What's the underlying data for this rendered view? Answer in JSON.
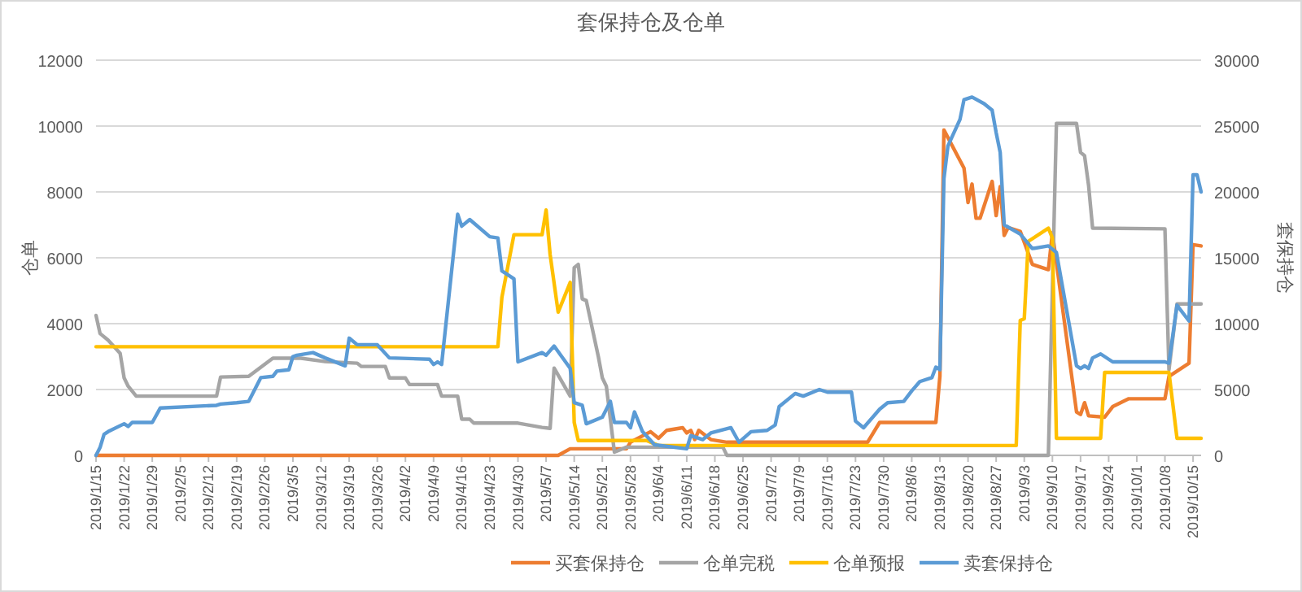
{
  "chart_data": {
    "type": "line",
    "title": "套保持仓及仓单",
    "ylabel": "仓单",
    "y2label": "套保持仓",
    "legend": "bottom",
    "grid": "y",
    "xlim": [
      "2019-01-15",
      "2019-10-17"
    ],
    "ylim": [
      0,
      12000
    ],
    "yticks": [
      0,
      2000,
      4000,
      6000,
      8000,
      10000,
      12000
    ],
    "y2lim": [
      0,
      30000
    ],
    "y2ticks": [
      0,
      5000,
      10000,
      15000,
      20000,
      25000,
      30000
    ],
    "xticks": [
      {
        "value": "2019-01-15",
        "label": "2019/1/15"
      },
      {
        "value": "2019-01-22",
        "label": "2019/1/22"
      },
      {
        "value": "2019-01-29",
        "label": "2019/1/29"
      },
      {
        "value": "2019-02-05",
        "label": "2019/2/5"
      },
      {
        "value": "2019-02-12",
        "label": "2019/2/12"
      },
      {
        "value": "2019-02-19",
        "label": "2019/2/19"
      },
      {
        "value": "2019-02-26",
        "label": "2019/2/26"
      },
      {
        "value": "2019-03-05",
        "label": "2019/3/5"
      },
      {
        "value": "2019-03-12",
        "label": "2019/3/12"
      },
      {
        "value": "2019-03-19",
        "label": "2019/3/19"
      },
      {
        "value": "2019-03-26",
        "label": "2019/3/26"
      },
      {
        "value": "2019-04-02",
        "label": "2019/4/2"
      },
      {
        "value": "2019-04-09",
        "label": "2019/4/9"
      },
      {
        "value": "2019-04-16",
        "label": "2019/4/16"
      },
      {
        "value": "2019-04-23",
        "label": "2019/4/23"
      },
      {
        "value": "2019-04-30",
        "label": "2019/4/30"
      },
      {
        "value": "2019-05-07",
        "label": "2019/5/7"
      },
      {
        "value": "2019-05-14",
        "label": "2019/5/14"
      },
      {
        "value": "2019-05-21",
        "label": "2019/5/21"
      },
      {
        "value": "2019-05-28",
        "label": "2019/5/28"
      },
      {
        "value": "2019-06-04",
        "label": "2019/6/4"
      },
      {
        "value": "2019-06-11",
        "label": "2019/6/11"
      },
      {
        "value": "2019-06-18",
        "label": "2019/6/18"
      },
      {
        "value": "2019-06-25",
        "label": "2019/6/25"
      },
      {
        "value": "2019-07-02",
        "label": "2019/7/2"
      },
      {
        "value": "2019-07-09",
        "label": "2019/7/9"
      },
      {
        "value": "2019-07-16",
        "label": "2019/7/16"
      },
      {
        "value": "2019-07-23",
        "label": "2019/7/23"
      },
      {
        "value": "2019-07-30",
        "label": "2019/7/30"
      },
      {
        "value": "2019-08-06",
        "label": "2019/8/6"
      },
      {
        "value": "2019-08-13",
        "label": "2019/8/13"
      },
      {
        "value": "2019-08-20",
        "label": "2019/8/20"
      },
      {
        "value": "2019-08-27",
        "label": "2019/8/27"
      },
      {
        "value": "2019-09-03",
        "label": "2019/9/3"
      },
      {
        "value": "2019-09-10",
        "label": "2019/9/10"
      },
      {
        "value": "2019-09-17",
        "label": "2019/9/17"
      },
      {
        "value": "2019-09-24",
        "label": "2019/9/24"
      },
      {
        "value": "2019-10-01",
        "label": "2019/10/1"
      },
      {
        "value": "2019-10-08",
        "label": "2019/10/8"
      },
      {
        "value": "2019-10-15",
        "label": "2019/10/15"
      }
    ],
    "series": [
      {
        "name": "买套保持仓",
        "color": "#ed7d31",
        "axis": "y2",
        "x": [
          "2019-01-15",
          "2019-05-10",
          "2019-05-13",
          "2019-05-27",
          "2019-05-28",
          "2019-06-02",
          "2019-06-04",
          "2019-06-06",
          "2019-06-10",
          "2019-06-11",
          "2019-06-12",
          "2019-06-13",
          "2019-06-14",
          "2019-06-17",
          "2019-06-21",
          "2019-07-26",
          "2019-07-29",
          "2019-08-12",
          "2019-08-13",
          "2019-08-14",
          "2019-08-19",
          "2019-08-20",
          "2019-08-21",
          "2019-08-22",
          "2019-08-23",
          "2019-08-26",
          "2019-08-27",
          "2019-08-28",
          "2019-08-29",
          "2019-08-30",
          "2019-09-02",
          "2019-09-05",
          "2019-09-09",
          "2019-09-10",
          "2019-09-16",
          "2019-09-17",
          "2019-09-18",
          "2019-09-19",
          "2019-09-23",
          "2019-09-25",
          "2019-09-29",
          "2019-10-08",
          "2019-10-09",
          "2019-10-14",
          "2019-10-15",
          "2019-10-17"
        ],
        "values": [
          0,
          0,
          500,
          500,
          1000,
          1800,
          1300,
          1900,
          2100,
          1700,
          1900,
          1200,
          1900,
          1200,
          1000,
          1000,
          2500,
          2500,
          6000,
          24700,
          21800,
          19200,
          20600,
          18000,
          18000,
          20800,
          18200,
          20400,
          16700,
          17300,
          17000,
          14500,
          14100,
          16900,
          3300,
          3100,
          4000,
          3000,
          2900,
          3700,
          4300,
          4300,
          6000,
          7000,
          16000,
          15900
        ]
      },
      {
        "name": "仓单完税",
        "color": "#a5a5a5",
        "x": [
          "2019-01-15",
          "2019-01-16",
          "2019-01-18",
          "2019-01-21",
          "2019-01-22",
          "2019-01-23",
          "2019-01-25",
          "2019-02-14",
          "2019-02-15",
          "2019-02-22",
          "2019-02-28",
          "2019-03-07",
          "2019-03-13",
          "2019-03-21",
          "2019-03-22",
          "2019-03-28",
          "2019-03-29",
          "2019-04-02",
          "2019-04-03",
          "2019-04-10",
          "2019-04-11",
          "2019-04-15",
          "2019-04-16",
          "2019-04-18",
          "2019-04-19",
          "2019-04-30",
          "2019-05-06",
          "2019-05-08",
          "2019-05-09",
          "2019-05-13",
          "2019-05-14",
          "2019-05-15",
          "2019-05-16",
          "2019-05-17",
          "2019-05-20",
          "2019-05-21",
          "2019-05-22",
          "2019-05-24",
          "2019-05-27",
          "2019-06-20",
          "2019-06-21",
          "2019-09-09",
          "2019-09-11",
          "2019-09-16",
          "2019-09-17",
          "2019-09-18",
          "2019-09-19",
          "2019-09-20",
          "2019-10-08",
          "2019-10-09",
          "2019-10-11",
          "2019-10-17"
        ],
        "values": [
          4250,
          3700,
          3500,
          3100,
          2350,
          2100,
          1800,
          1800,
          2380,
          2400,
          2950,
          2950,
          2850,
          2800,
          2700,
          2700,
          2350,
          2350,
          2150,
          2150,
          1800,
          1800,
          1100,
          1100,
          980,
          980,
          850,
          820,
          2650,
          1800,
          5700,
          5800,
          4750,
          4700,
          3000,
          2350,
          2100,
          100,
          250,
          250,
          0,
          0,
          10080,
          10080,
          9200,
          9100,
          8200,
          6900,
          6880,
          2600,
          4600,
          4600
        ]
      },
      {
        "name": "仓单预报",
        "color": "#ffc000",
        "x": [
          "2019-01-15",
          "2019-04-25",
          "2019-04-26",
          "2019-04-29",
          "2019-05-06",
          "2019-05-07",
          "2019-05-08",
          "2019-05-10",
          "2019-05-13",
          "2019-05-14",
          "2019-05-15",
          "2019-06-01",
          "2019-06-04",
          "2019-09-01",
          "2019-09-02",
          "2019-09-03",
          "2019-09-04",
          "2019-09-09",
          "2019-09-10",
          "2019-09-11",
          "2019-09-22",
          "2019-09-23",
          "2019-10-09",
          "2019-10-11",
          "2019-10-17"
        ],
        "values": [
          3300,
          3300,
          4800,
          6700,
          6700,
          7450,
          6100,
          4350,
          5250,
          1000,
          450,
          450,
          300,
          300,
          4100,
          4150,
          6500,
          6900,
          6600,
          520,
          520,
          2520,
          2520,
          520,
          520
        ]
      },
      {
        "name": "卖套保持仓",
        "color": "#5b9bd5",
        "axis": "y2",
        "x": [
          "2019-01-15",
          "2019-01-16",
          "2019-01-17",
          "2019-01-18",
          "2019-01-22",
          "2019-01-23",
          "2019-01-24",
          "2019-01-29",
          "2019-01-31",
          "2019-02-14",
          "2019-02-15",
          "2019-02-19",
          "2019-02-22",
          "2019-02-25",
          "2019-02-28",
          "2019-03-01",
          "2019-03-04",
          "2019-03-05",
          "2019-03-06",
          "2019-03-10",
          "2019-03-13",
          "2019-03-18",
          "2019-03-19",
          "2019-03-21",
          "2019-03-26",
          "2019-03-29",
          "2019-04-08",
          "2019-04-09",
          "2019-04-10",
          "2019-04-11",
          "2019-04-15",
          "2019-04-16",
          "2019-04-18",
          "2019-04-23",
          "2019-04-25",
          "2019-04-26",
          "2019-04-29",
          "2019-04-30",
          "2019-05-06",
          "2019-05-07",
          "2019-05-09",
          "2019-05-13",
          "2019-05-14",
          "2019-05-16",
          "2019-05-17",
          "2019-05-21",
          "2019-05-23",
          "2019-05-24",
          "2019-05-27",
          "2019-05-28",
          "2019-05-29",
          "2019-05-31",
          "2019-06-03",
          "2019-06-11",
          "2019-06-12",
          "2019-06-15",
          "2019-06-17",
          "2019-06-22",
          "2019-06-24",
          "2019-06-27",
          "2019-07-01",
          "2019-07-03",
          "2019-07-04",
          "2019-07-08",
          "2019-07-10",
          "2019-07-14",
          "2019-07-16",
          "2019-07-22",
          "2019-07-23",
          "2019-07-25",
          "2019-07-29",
          "2019-07-31",
          "2019-08-04",
          "2019-08-06",
          "2019-08-08",
          "2019-08-11",
          "2019-08-12",
          "2019-08-13",
          "2019-08-14",
          "2019-08-15",
          "2019-08-18",
          "2019-08-19",
          "2019-08-21",
          "2019-08-24",
          "2019-08-26",
          "2019-08-27",
          "2019-08-28",
          "2019-08-29",
          "2019-09-02",
          "2019-09-05",
          "2019-09-09",
          "2019-09-11",
          "2019-09-16",
          "2019-09-17",
          "2019-09-18",
          "2019-09-19",
          "2019-09-20",
          "2019-09-22",
          "2019-09-25",
          "2019-10-08",
          "2019-10-09",
          "2019-10-11",
          "2019-10-14",
          "2019-10-15",
          "2019-10-16",
          "2019-10-17"
        ],
        "values": [
          0,
          600,
          1600,
          1800,
          2400,
          2200,
          2500,
          2500,
          3600,
          3800,
          3900,
          4000,
          4100,
          5900,
          6000,
          6400,
          6500,
          7500,
          7600,
          7800,
          7400,
          6800,
          8900,
          8400,
          8400,
          7400,
          7300,
          6900,
          7100,
          6900,
          18300,
          17400,
          17900,
          16600,
          16500,
          14000,
          13400,
          7100,
          7800,
          7600,
          8300,
          6600,
          4000,
          3800,
          2400,
          2900,
          4100,
          2500,
          2500,
          2100,
          3300,
          1800,
          800,
          500,
          1500,
          1200,
          1700,
          2100,
          1000,
          1800,
          1900,
          2300,
          3700,
          4700,
          4500,
          5000,
          4800,
          4800,
          2600,
          2100,
          3500,
          4000,
          4100,
          4900,
          5600,
          5900,
          6700,
          6500,
          21000,
          23500,
          25500,
          27000,
          27200,
          26700,
          26200,
          24500,
          23000,
          17500,
          16800,
          15700,
          15900,
          15400,
          6800,
          6600,
          6800,
          6600,
          7400,
          7700,
          7100,
          7100,
          7000,
          11400,
          10200,
          21300,
          21300,
          20000
        ]
      }
    ]
  }
}
